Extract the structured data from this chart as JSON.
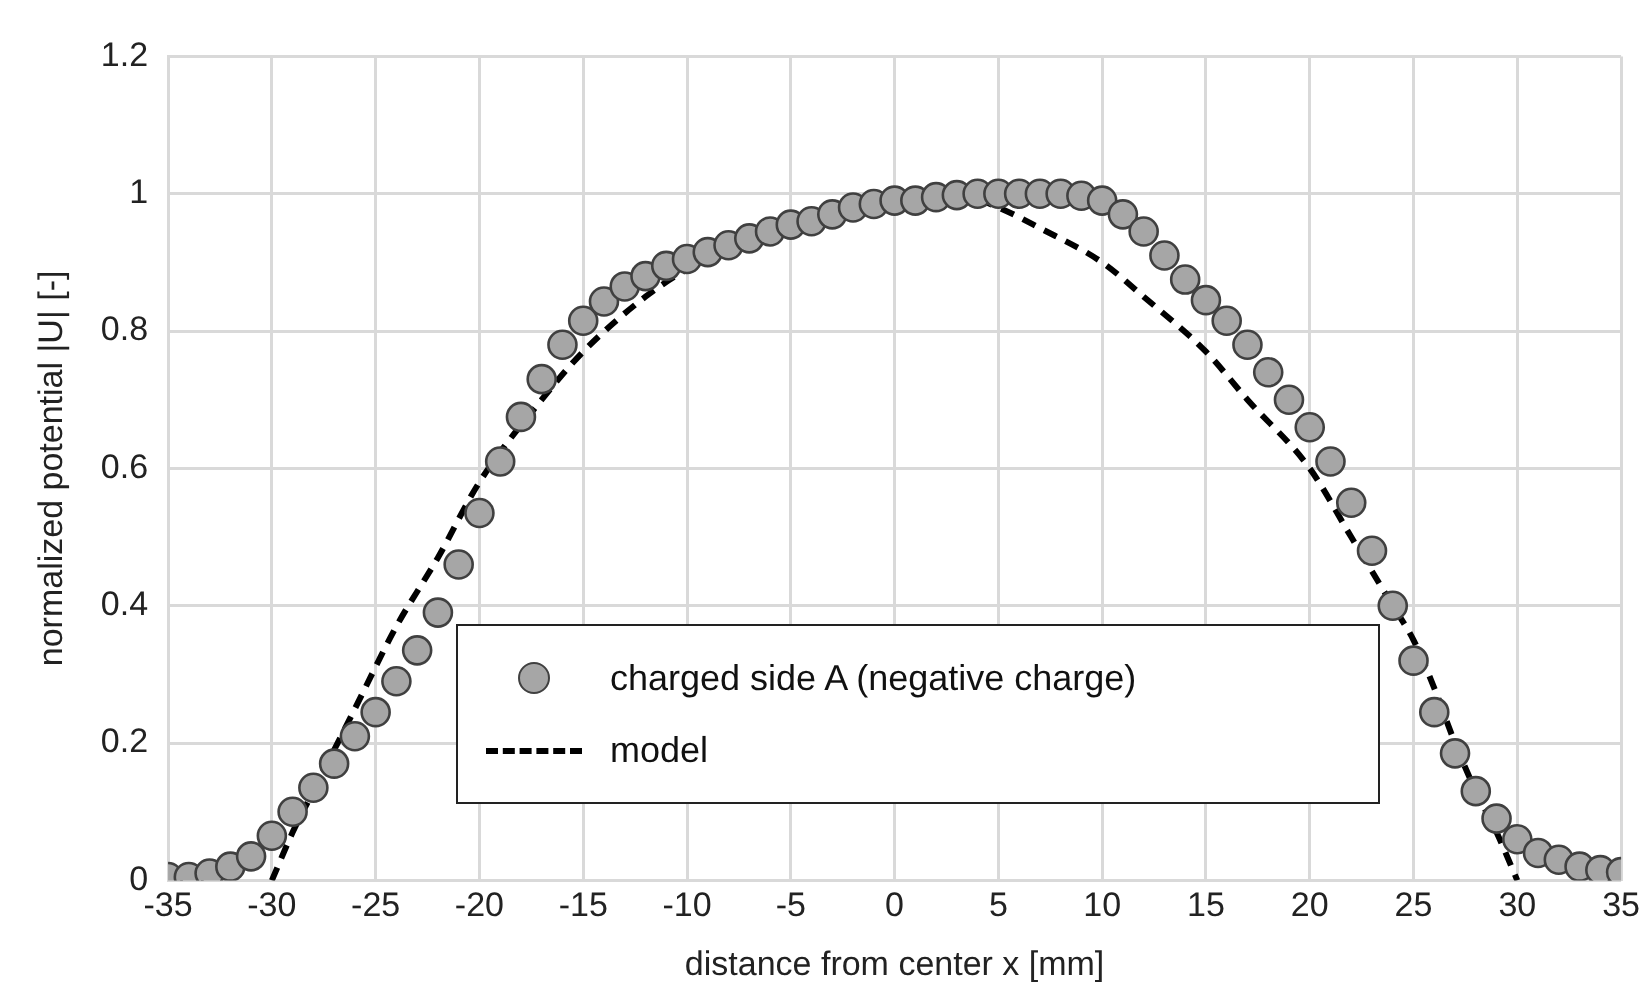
{
  "chart_data": {
    "type": "scatter",
    "xlabel": "distance from center x [mm]",
    "ylabel": "normalized potential |U| [-]",
    "xlim": [
      -35,
      35
    ],
    "xticks": [
      -35,
      -30,
      -25,
      -20,
      -15,
      -10,
      -5,
      0,
      5,
      10,
      15,
      20,
      25,
      30,
      35
    ],
    "ylim": [
      0,
      1.2
    ],
    "yticks": [
      0,
      0.2,
      0.4,
      0.6,
      0.8,
      1,
      1.2
    ],
    "grid": true,
    "legend": "bottom",
    "series": [
      {
        "name": "charged side A (negative charge)",
        "color": "#a6a6a6",
        "marker": "circle",
        "x": [
          -35,
          -34,
          -33,
          -32,
          -31,
          -30,
          -29,
          -28,
          -27,
          -26,
          -25,
          -24,
          -23,
          -22,
          -21,
          -20,
          -19,
          -18,
          -17,
          -16,
          -15,
          -14,
          -13,
          -12,
          -11,
          -10,
          -9,
          -8,
          -7,
          -6,
          -5,
          -4,
          -3,
          -2,
          -1,
          0,
          1,
          2,
          3,
          4,
          5,
          6,
          7,
          8,
          9,
          10,
          11,
          12,
          13,
          14,
          15,
          16,
          17,
          18,
          19,
          20,
          21,
          22,
          23,
          24,
          25,
          26,
          27,
          28,
          29,
          30,
          31,
          32,
          33,
          34,
          35
        ],
        "values": [
          0.005,
          0.005,
          0.01,
          0.02,
          0.035,
          0.065,
          0.1,
          0.135,
          0.17,
          0.21,
          0.245,
          0.29,
          0.335,
          0.39,
          0.46,
          0.535,
          0.61,
          0.675,
          0.73,
          0.78,
          0.815,
          0.843,
          0.865,
          0.88,
          0.895,
          0.905,
          0.915,
          0.925,
          0.935,
          0.945,
          0.955,
          0.96,
          0.97,
          0.98,
          0.985,
          0.99,
          0.99,
          0.995,
          0.998,
          1.0,
          1.0,
          1.0,
          1.0,
          1.0,
          0.997,
          0.99,
          0.97,
          0.945,
          0.91,
          0.875,
          0.845,
          0.815,
          0.78,
          0.74,
          0.7,
          0.66,
          0.61,
          0.55,
          0.48,
          0.4,
          0.32,
          0.245,
          0.185,
          0.13,
          0.09,
          0.06,
          0.04,
          0.03,
          0.02,
          0.015,
          0.012
        ]
      },
      {
        "name": "model",
        "type": "line",
        "color": "#000000",
        "marker": "none",
        "line_style": "dashed",
        "x": [
          -30,
          -29,
          -28,
          -26,
          -24,
          -22,
          -20,
          -17,
          -15,
          -12,
          -10,
          -7,
          -5,
          -2,
          0,
          2,
          3,
          5,
          7,
          10,
          12,
          15,
          17,
          20,
          22,
          24,
          25,
          26,
          27,
          28,
          29,
          30
        ],
        "values": [
          0,
          0.07,
          0.13,
          0.25,
          0.37,
          0.47,
          0.58,
          0.7,
          0.77,
          0.85,
          0.89,
          0.935,
          0.96,
          0.985,
          0.995,
          1.0,
          1.0,
          0.98,
          0.95,
          0.9,
          0.85,
          0.77,
          0.7,
          0.6,
          0.5,
          0.4,
          0.35,
          0.28,
          0.2,
          0.13,
          0.07,
          0
        ]
      }
    ]
  }
}
